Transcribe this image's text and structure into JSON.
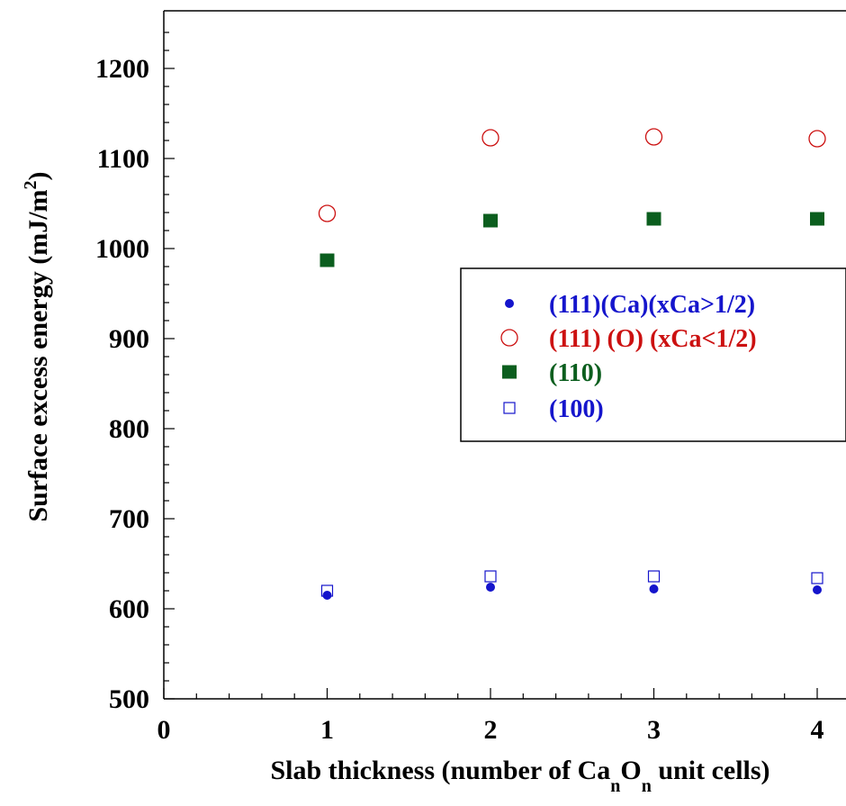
{
  "chart_data": {
    "type": "scatter",
    "xlabel": "Slab thickness (number of Ca O unit cells)",
    "xlabel_parts": {
      "before": "Slab thickness (number of Ca",
      "sub1": "n",
      "middle": "O",
      "sub2": "n",
      "after": " unit cells)"
    },
    "ylabel": "Surface excess energy (mJ/m2)",
    "ylabel_parts": {
      "main": "Surface excess energy (mJ/m",
      "sup": "2",
      "close": ")"
    },
    "xlim": [
      0,
      4.15
    ],
    "ylim": [
      500,
      1250
    ],
    "x_ticks": [
      0,
      1,
      2,
      3,
      4
    ],
    "y_ticks": [
      500,
      600,
      700,
      800,
      900,
      1000,
      1100,
      1200
    ],
    "x_tick_labels": [
      "0",
      "1",
      "2",
      "3",
      "4"
    ],
    "y_tick_labels": [
      "500",
      "600",
      "700",
      "800",
      "900",
      "1000",
      "1100",
      "1200"
    ],
    "grid": false,
    "legend_position": "right",
    "series": [
      {
        "name": "(111)(Ca)(xCa>1/2)",
        "marker": "filled-circle-small",
        "color": "#1515cc",
        "x": [
          1,
          2,
          3,
          4
        ],
        "y": [
          615,
          624,
          622,
          621
        ]
      },
      {
        "name": "(111) (O) (xCa<1/2)",
        "marker": "open-circle",
        "color": "#cc1111",
        "x": [
          1,
          2,
          3,
          4
        ],
        "y": [
          1039,
          1123,
          1124,
          1122
        ]
      },
      {
        "name": "(110)",
        "marker": "filled-square",
        "color": "#0b5e1e",
        "x": [
          1,
          2,
          3,
          4
        ],
        "y": [
          987,
          1031,
          1033,
          1033
        ]
      },
      {
        "name": "(100)",
        "marker": "open-square",
        "color": "#1515cc",
        "x": [
          1,
          2,
          3,
          4
        ],
        "y": [
          620,
          636,
          636,
          634
        ]
      }
    ]
  }
}
